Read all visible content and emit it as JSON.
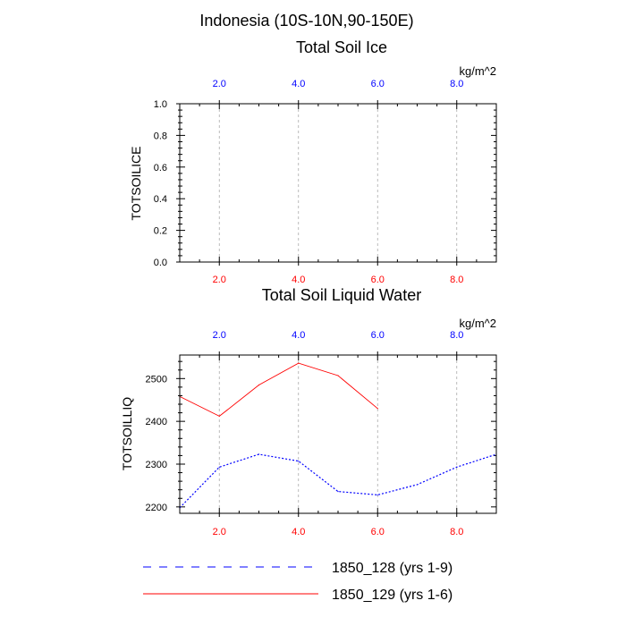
{
  "page": {
    "title": "Indonesia (10S-10N,90-150E)"
  },
  "colors": {
    "top_tick_labels": "#0000ff",
    "bottom_tick_labels": "#ff0000",
    "series_128": "#0000ff",
    "series_129": "#ff0000",
    "grid": "#aaaaaa"
  },
  "chart_data": [
    {
      "type": "line",
      "title": "Total Soil Ice",
      "ylabel": "TOTSOILICE",
      "units": "kg/m^2",
      "xlim": [
        1,
        9
      ],
      "ylim": [
        0,
        1
      ],
      "x_major_ticks": [
        2,
        4,
        6,
        8
      ],
      "x_tick_labels": [
        "2.0",
        "4.0",
        "6.0",
        "8.0"
      ],
      "y_major_ticks": [
        0,
        0.2,
        0.4,
        0.6,
        0.8,
        1.0
      ],
      "y_tick_labels": [
        "0.0",
        "0.2",
        "0.4",
        "0.6",
        "0.8",
        "1.0"
      ],
      "grid": "vertical-dashed",
      "series": []
    },
    {
      "type": "line",
      "title": "Total Soil Liquid Water",
      "ylabel": "TOTSOILLIQ",
      "units": "kg/m^2",
      "xlim": [
        1,
        9
      ],
      "ylim": [
        2185,
        2555
      ],
      "x_major_ticks": [
        2,
        4,
        6,
        8
      ],
      "x_tick_labels": [
        "2.0",
        "4.0",
        "6.0",
        "8.0"
      ],
      "y_major_ticks": [
        2200,
        2300,
        2400,
        2500
      ],
      "y_tick_labels": [
        "2200",
        "2300",
        "2400",
        "2500"
      ],
      "grid": "vertical-dashed",
      "series": [
        {
          "name": "1850_128 (yrs 1-9)",
          "style": "dashed",
          "color": "#0000ff",
          "x": [
            1,
            2,
            3,
            4,
            5,
            6,
            7,
            8,
            9
          ],
          "values": [
            2198,
            2293,
            2323,
            2307,
            2236,
            2228,
            2252,
            2293,
            2323
          ]
        },
        {
          "name": "1850_129 (yrs 1-6)",
          "style": "solid",
          "color": "#ff0000",
          "x": [
            1,
            2,
            3,
            4,
            5,
            6
          ],
          "values": [
            2458,
            2412,
            2485,
            2536,
            2507,
            2430
          ]
        }
      ]
    }
  ],
  "legend": {
    "placement": "bottom",
    "items": [
      {
        "label": "1850_128 (yrs 1-9)",
        "style": "dashed",
        "color": "#0000ff"
      },
      {
        "label": "1850_129 (yrs 1-6)",
        "style": "solid",
        "color": "#ff0000"
      }
    ]
  }
}
